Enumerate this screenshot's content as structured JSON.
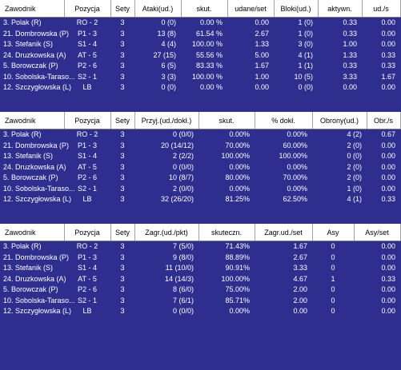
{
  "colors": {
    "background": "#2e2e8f",
    "header_bg": "#ffffff",
    "text": "#ffffff"
  },
  "attack": {
    "headers": [
      "Zawodnik",
      "Pozycja",
      "Sety",
      "Ataki(ud.)",
      "skut.",
      "udane/set",
      "Bloki(ud.)",
      "aktywn.",
      "ud./s"
    ],
    "rows": [
      [
        "3. Polak (R)",
        "RO - 2",
        "3",
        "0 (0)",
        "0.00 %",
        "0.00",
        "1 (0)",
        "0.33",
        "0.00"
      ],
      [
        "21. Dombrowska (P)",
        "P1 - 3",
        "3",
        "13 (8)",
        "61.54 %",
        "2.67",
        "1 (0)",
        "0.33",
        "0.00"
      ],
      [
        "13. Stefanik (S)",
        "S1 - 4",
        "3",
        "4 (4)",
        "100.00 %",
        "1.33",
        "3 (0)",
        "1.00",
        "0.00"
      ],
      [
        "24. Druzkowska (A)",
        "AT - 5",
        "3",
        "27 (15)",
        "55.56 %",
        "5.00",
        "4 (1)",
        "1.33",
        "0.33"
      ],
      [
        "5. Borowczak (P)",
        "P2 - 6",
        "3",
        "6 (5)",
        "83.33 %",
        "1.67",
        "1 (1)",
        "0.33",
        "0.33"
      ],
      [
        "10. Sobolska-Taraso...",
        "S2 - 1",
        "3",
        "3 (3)",
        "100.00 %",
        "1.00",
        "10 (5)",
        "3.33",
        "1.67"
      ],
      [
        "12. Szczygłowska (L)",
        "LB",
        "3",
        "0 (0)",
        "0.00 %",
        "0.00",
        "0 (0)",
        "0.00",
        "0.00"
      ]
    ]
  },
  "reception": {
    "headers": [
      "Zawodnik",
      "Pozycja",
      "Sety",
      "Przyj.(ud./dokł.)",
      "skut.",
      "% dokł.",
      "Obrony(ud.)",
      "Obr./s"
    ],
    "rows": [
      [
        "3. Polak (R)",
        "RO - 2",
        "3",
        "0 (0/0)",
        "0.00%",
        "0.00%",
        "4 (2)",
        "0.67"
      ],
      [
        "21. Dombrowska (P)",
        "P1 - 3",
        "3",
        "20 (14/12)",
        "70.00%",
        "60.00%",
        "2 (0)",
        "0.00"
      ],
      [
        "13. Stefanik (S)",
        "S1 - 4",
        "3",
        "2 (2/2)",
        "100.00%",
        "100.00%",
        "0 (0)",
        "0.00"
      ],
      [
        "24. Druzkowska (A)",
        "AT - 5",
        "3",
        "0 (0/0)",
        "0.00%",
        "0.00%",
        "2 (0)",
        "0.00"
      ],
      [
        "5. Borowczak (P)",
        "P2 - 6",
        "3",
        "10 (8/7)",
        "80.00%",
        "70.00%",
        "2 (0)",
        "0.00"
      ],
      [
        "10. Sobolska-Taraso...",
        "S2 - 1",
        "3",
        "2 (0/0)",
        "0.00%",
        "0.00%",
        "1 (0)",
        "0.00"
      ],
      [
        "12. Szczygłowska (L)",
        "LB",
        "3",
        "32 (26/20)",
        "81.25%",
        "62.50%",
        "4 (1)",
        "0.33"
      ]
    ]
  },
  "serve": {
    "headers": [
      "Zawodnik",
      "Pozycja",
      "Sety",
      "Zagr.(ud./pkt)",
      "skuteczn.",
      "Zagr.ud./set",
      "Asy",
      "Asy/set"
    ],
    "rows": [
      [
        "3. Polak (R)",
        "RO - 2",
        "3",
        "7 (5/0)",
        "71.43%",
        "1.67",
        "0",
        "0.00"
      ],
      [
        "21. Dombrowska (P)",
        "P1 - 3",
        "3",
        "9 (8/0)",
        "88.89%",
        "2.67",
        "0",
        "0.00"
      ],
      [
        "13. Stefanik (S)",
        "S1 - 4",
        "3",
        "11 (10/0)",
        "90.91%",
        "3.33",
        "0",
        "0.00"
      ],
      [
        "24. Druzkowska (A)",
        "AT - 5",
        "3",
        "14 (14/3)",
        "100.00%",
        "4.67",
        "1",
        "0.33"
      ],
      [
        "5. Borowczak (P)",
        "P2 - 6",
        "3",
        "8 (6/0)",
        "75.00%",
        "2.00",
        "0",
        "0.00"
      ],
      [
        "10. Sobolska-Taraso...",
        "S2 - 1",
        "3",
        "7 (6/1)",
        "85.71%",
        "2.00",
        "0",
        "0.00"
      ],
      [
        "12. Szczygłowska (L)",
        "LB",
        "3",
        "0 (0/0)",
        "0.00%",
        "0.00",
        "0",
        "0.00"
      ]
    ]
  }
}
